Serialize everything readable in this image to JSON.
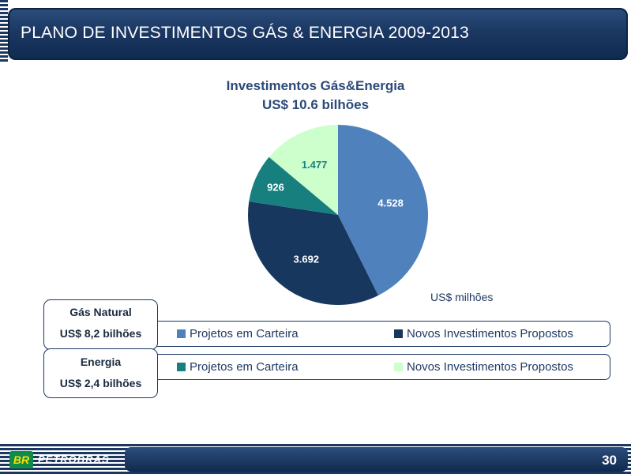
{
  "header": {
    "title": "PLANO DE INVESTIMENTOS GÁS & ENERGIA 2009-2013"
  },
  "chart_data": {
    "type": "pie",
    "title": "Investimentos Gás&Energia",
    "subtitle": "US$ 10.6 bilhões",
    "unit_label": "US$ milhões",
    "slices": [
      {
        "label": "4.528",
        "value": 4528,
        "color": "#4f81bd",
        "label_color": "#ffffff"
      },
      {
        "label": "3.692",
        "value": 3692,
        "color": "#17375e",
        "label_color": "#ffffff"
      },
      {
        "label": "926",
        "value": 926,
        "color": "#17807e",
        "label_color": "#ffffff"
      },
      {
        "label": "1.477",
        "value": 1477,
        "color": "#ccffcc",
        "label_color": "#17807e"
      }
    ],
    "legend_placement": "bottom"
  },
  "groups": [
    {
      "name": "Gás Natural",
      "value": "US$ 8,2 bilhões",
      "legend": [
        {
          "label": "Projetos em Carteira",
          "color": "#4f81bd"
        },
        {
          "label": "Novos Investimentos Propostos",
          "color": "#17375e"
        }
      ]
    },
    {
      "name": "Energia",
      "value": "US$ 2,4 bilhões",
      "legend": [
        {
          "label": "Projetos em Carteira",
          "color": "#17807e"
        },
        {
          "label": "Novos Investimentos Propostos",
          "color": "#ccffcc"
        }
      ]
    }
  ],
  "footer": {
    "logo_mark": "BR",
    "logo_text": "PETROBRAS",
    "page_number": "30"
  }
}
